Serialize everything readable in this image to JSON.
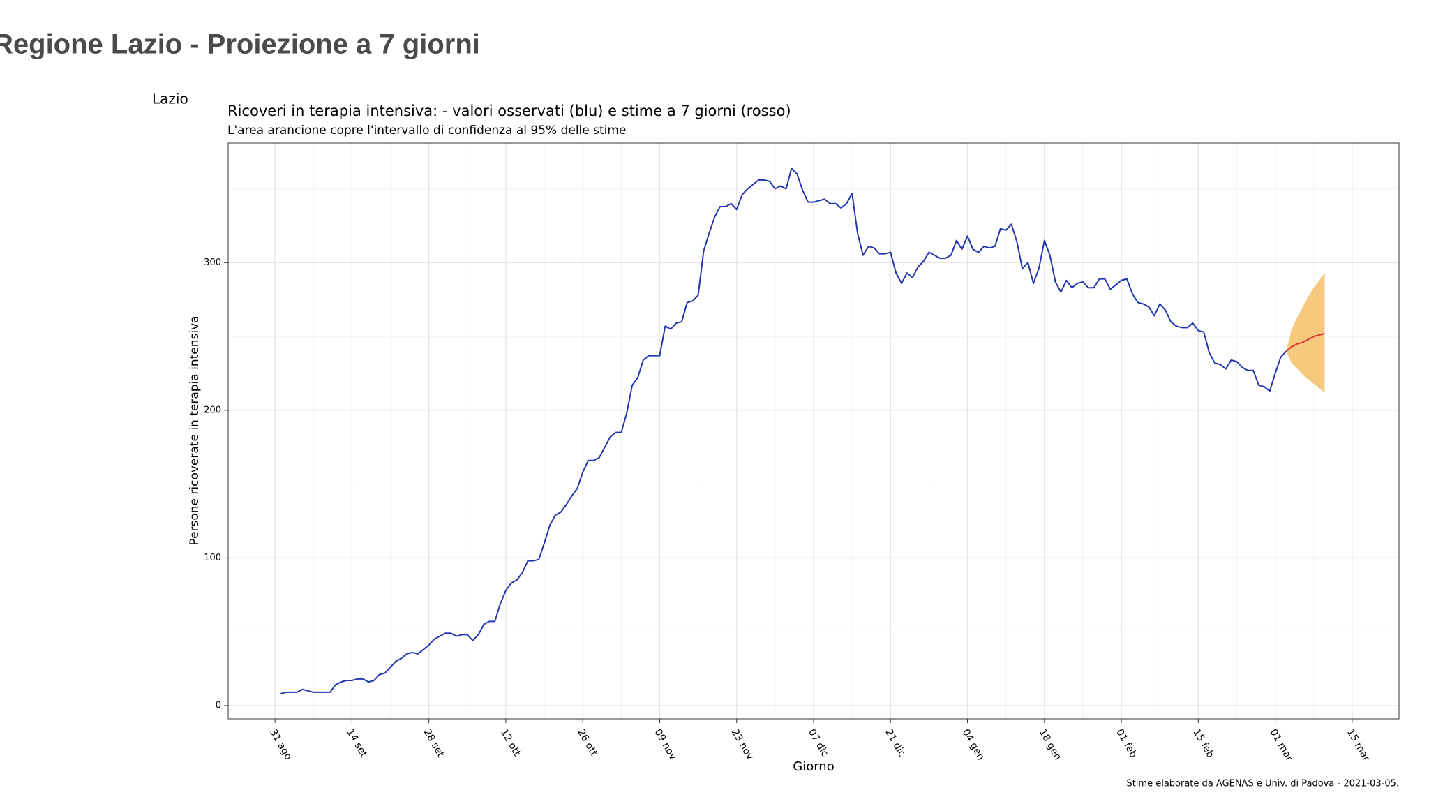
{
  "page_title": "Regione Lazio - Proiezione a 7 giorni",
  "chart_data": {
    "type": "line",
    "facet": "Lazio",
    "title": "Ricoveri in terapia intensiva: - valori osservati (blu) e stime a 7 giorni (rosso)",
    "subtitle": "L'area arancione copre l'intervallo di confidenza al 95% delle stime",
    "y_label": "Persone ricoverate in terapia intensiva",
    "x_label": "Giorno",
    "caption": "Stime elaborate da AGENAS e Univ. di Padova - 2021-03-05.",
    "ylim": [
      -9,
      381
    ],
    "yticks": [
      0,
      100,
      200,
      300
    ],
    "grid": true,
    "categories": [
      "31 ago",
      null,
      null,
      null,
      null,
      null,
      null,
      null,
      null,
      null,
      null,
      null,
      null,
      null,
      "14 set",
      null,
      null,
      null,
      null,
      null,
      null,
      null,
      null,
      null,
      null,
      null,
      null,
      null,
      "28 set",
      null,
      null,
      null,
      null,
      null,
      null,
      null,
      null,
      null,
      null,
      null,
      null,
      null,
      "12 ott",
      null,
      null,
      null,
      null,
      null,
      null,
      null,
      null,
      null,
      null,
      null,
      null,
      null,
      "26 ott",
      null,
      null,
      null,
      null,
      null,
      null,
      null,
      null,
      null,
      null,
      null,
      null,
      null,
      "09 nov",
      null,
      null,
      null,
      null,
      null,
      null,
      null,
      null,
      null,
      null,
      null,
      null,
      null,
      "23 nov",
      null,
      null,
      null,
      null,
      null,
      null,
      null,
      null,
      null,
      null,
      null,
      null,
      null,
      "07 dic",
      null,
      null,
      null,
      null,
      null,
      null,
      null,
      null,
      null,
      null,
      null,
      null,
      null,
      "21 dic",
      null,
      null,
      null,
      null,
      null,
      null,
      null,
      null,
      null,
      null,
      null,
      null,
      null,
      "04 gen",
      null,
      null,
      null,
      null,
      null,
      null,
      null,
      null,
      null,
      null,
      null,
      null,
      null,
      "18 gen",
      null,
      null,
      null,
      null,
      null,
      null,
      null,
      null,
      null,
      null,
      null,
      null,
      null,
      "01 feb",
      null,
      null,
      null,
      null,
      null,
      null,
      null,
      null,
      null,
      null,
      null,
      null,
      null,
      "15 feb",
      null,
      null,
      null,
      null,
      null,
      null,
      null,
      null,
      null,
      null,
      null,
      null,
      null,
      "01 mar",
      null,
      null,
      null,
      null,
      null,
      null,
      null,
      null,
      null,
      null,
      null,
      null,
      null,
      "15 mar"
    ],
    "band": {
      "color": "#f6c36f",
      "lower": [
        null,
        null,
        null,
        null,
        null,
        null,
        null,
        null,
        null,
        null,
        null,
        null,
        null,
        null,
        null,
        null,
        null,
        null,
        null,
        null,
        null,
        null,
        null,
        null,
        null,
        null,
        null,
        null,
        null,
        null,
        null,
        null,
        null,
        null,
        null,
        null,
        null,
        null,
        null,
        null,
        null,
        null,
        null,
        null,
        null,
        null,
        null,
        null,
        null,
        null,
        null,
        null,
        null,
        null,
        null,
        null,
        null,
        null,
        null,
        null,
        null,
        null,
        null,
        null,
        null,
        null,
        null,
        null,
        null,
        null,
        null,
        null,
        null,
        null,
        null,
        null,
        null,
        null,
        null,
        null,
        null,
        null,
        null,
        null,
        null,
        null,
        null,
        null,
        null,
        null,
        null,
        null,
        null,
        null,
        null,
        null,
        null,
        null,
        null,
        null,
        null,
        null,
        null,
        null,
        null,
        null,
        null,
        null,
        null,
        null,
        null,
        null,
        null,
        null,
        null,
        null,
        null,
        null,
        null,
        null,
        null,
        null,
        null,
        null,
        null,
        null,
        null,
        null,
        null,
        null,
        null,
        null,
        null,
        null,
        null,
        null,
        null,
        null,
        null,
        null,
        null,
        null,
        null,
        null,
        null,
        null,
        null,
        null,
        null,
        null,
        null,
        null,
        null,
        null,
        null,
        null,
        null,
        null,
        null,
        null,
        null,
        null,
        null,
        null,
        null,
        null,
        null,
        null,
        null,
        null,
        null,
        null,
        null,
        null,
        null,
        null,
        null,
        null,
        null,
        null,
        null,
        null,
        null,
        null,
        240,
        232,
        228,
        224,
        221,
        218,
        215,
        212,
        null,
        null,
        null,
        null,
        null
      ],
      "upper": [
        null,
        null,
        null,
        null,
        null,
        null,
        null,
        null,
        null,
        null,
        null,
        null,
        null,
        null,
        null,
        null,
        null,
        null,
        null,
        null,
        null,
        null,
        null,
        null,
        null,
        null,
        null,
        null,
        null,
        null,
        null,
        null,
        null,
        null,
        null,
        null,
        null,
        null,
        null,
        null,
        null,
        null,
        null,
        null,
        null,
        null,
        null,
        null,
        null,
        null,
        null,
        null,
        null,
        null,
        null,
        null,
        null,
        null,
        null,
        null,
        null,
        null,
        null,
        null,
        null,
        null,
        null,
        null,
        null,
        null,
        null,
        null,
        null,
        null,
        null,
        null,
        null,
        null,
        null,
        null,
        null,
        null,
        null,
        null,
        null,
        null,
        null,
        null,
        null,
        null,
        null,
        null,
        null,
        null,
        null,
        null,
        null,
        null,
        null,
        null,
        null,
        null,
        null,
        null,
        null,
        null,
        null,
        null,
        null,
        null,
        null,
        null,
        null,
        null,
        null,
        null,
        null,
        null,
        null,
        null,
        null,
        null,
        null,
        null,
        null,
        null,
        null,
        null,
        null,
        null,
        null,
        null,
        null,
        null,
        null,
        null,
        null,
        null,
        null,
        null,
        null,
        null,
        null,
        null,
        null,
        null,
        null,
        null,
        null,
        null,
        null,
        null,
        null,
        null,
        null,
        null,
        null,
        null,
        null,
        null,
        null,
        null,
        null,
        null,
        null,
        null,
        null,
        null,
        null,
        null,
        null,
        null,
        null,
        null,
        null,
        null,
        null,
        null,
        null,
        null,
        null,
        null,
        null,
        null,
        240,
        255,
        263,
        270,
        277,
        283,
        288,
        293,
        null,
        null,
        null,
        null,
        null
      ]
    },
    "series": [
      {
        "color": "#2236b0",
        "values": [
          null,
          8,
          9,
          9,
          9,
          11,
          10,
          9,
          9,
          9,
          9,
          14,
          16,
          17,
          17,
          18,
          18,
          16,
          17,
          21,
          22,
          26,
          30,
          32,
          35,
          36,
          35,
          38,
          41,
          45,
          47,
          49,
          49,
          47,
          48,
          48,
          44,
          48,
          55,
          57,
          57,
          69,
          78,
          83,
          85,
          90,
          98,
          98,
          99,
          110,
          122,
          129,
          131,
          136,
          142,
          147,
          158,
          166,
          166,
          168,
          175,
          182,
          185,
          185,
          198,
          217,
          222,
          234,
          237,
          237,
          237,
          257,
          255,
          259,
          260,
          273,
          274,
          278,
          308,
          320,
          331,
          338,
          338,
          340,
          336,
          346,
          350,
          353,
          356,
          356,
          355,
          350,
          352,
          350,
          364,
          360,
          349,
          341,
          341,
          342,
          343,
          340,
          340,
          337,
          340,
          347,
          320,
          305,
          311,
          310,
          306,
          306,
          307,
          293,
          286,
          293,
          290,
          297,
          301,
          307,
          305,
          303,
          303,
          305,
          315,
          309,
          318,
          309,
          307,
          311,
          310,
          311,
          323,
          322,
          326,
          314,
          296,
          300,
          286,
          296,
          315,
          305,
          287,
          280,
          288,
          283,
          286,
          287,
          283,
          283,
          289,
          289,
          282,
          285,
          288,
          289,
          279,
          273,
          272,
          270,
          264,
          272,
          268,
          260,
          257,
          256,
          256,
          259,
          254,
          253,
          239,
          232,
          231,
          228,
          234,
          233,
          229,
          227,
          227,
          217,
          216,
          213,
          225,
          236,
          240,
          null,
          null,
          null,
          null,
          null,
          null,
          null,
          null,
          null,
          null,
          null,
          null
        ]
      },
      {
        "color": "#d7372c",
        "values": [
          null,
          null,
          null,
          null,
          null,
          null,
          null,
          null,
          null,
          null,
          null,
          null,
          null,
          null,
          null,
          null,
          null,
          null,
          null,
          null,
          null,
          null,
          null,
          null,
          null,
          null,
          null,
          null,
          null,
          null,
          null,
          null,
          null,
          null,
          null,
          null,
          null,
          null,
          null,
          null,
          null,
          null,
          null,
          null,
          null,
          null,
          null,
          null,
          null,
          null,
          null,
          null,
          null,
          null,
          null,
          null,
          null,
          null,
          null,
          null,
          null,
          null,
          null,
          null,
          null,
          null,
          null,
          null,
          null,
          null,
          null,
          null,
          null,
          null,
          null,
          null,
          null,
          null,
          null,
          null,
          null,
          null,
          null,
          null,
          null,
          null,
          null,
          null,
          null,
          null,
          null,
          null,
          null,
          null,
          null,
          null,
          null,
          null,
          null,
          null,
          null,
          null,
          null,
          null,
          null,
          null,
          null,
          null,
          null,
          null,
          null,
          null,
          null,
          null,
          null,
          null,
          null,
          null,
          null,
          null,
          null,
          null,
          null,
          null,
          null,
          null,
          null,
          null,
          null,
          null,
          null,
          null,
          null,
          null,
          null,
          null,
          null,
          null,
          null,
          null,
          null,
          null,
          null,
          null,
          null,
          null,
          null,
          null,
          null,
          null,
          null,
          null,
          null,
          null,
          null,
          null,
          null,
          null,
          null,
          null,
          null,
          null,
          null,
          null,
          null,
          null,
          null,
          null,
          null,
          null,
          null,
          null,
          null,
          null,
          null,
          null,
          null,
          null,
          null,
          null,
          null,
          null,
          null,
          null,
          240,
          243,
          245,
          246,
          248,
          250,
          251,
          252,
          null,
          null,
          null,
          null,
          null
        ]
      }
    ]
  }
}
